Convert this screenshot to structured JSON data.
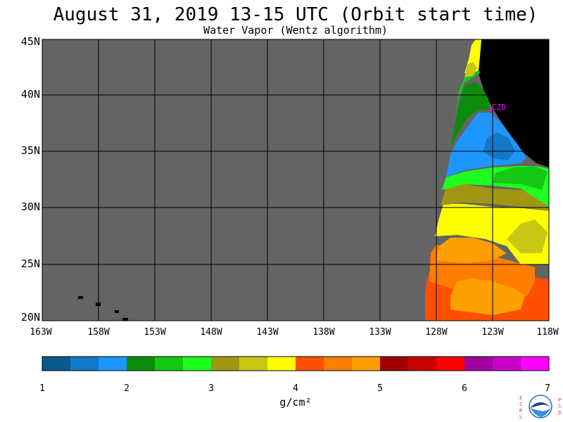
{
  "title": "August 31, 2019  13-15 UTC  (Orbit start time)",
  "subtitle": "Water Vapor (Wentz algorithm)",
  "map": {
    "lat_labels": [
      "45N",
      "40N",
      "35N",
      "30N",
      "25N",
      "20N"
    ],
    "lon_labels": [
      "163W",
      "158W",
      "153W",
      "148W",
      "143W",
      "138W",
      "133W",
      "128W",
      "123W",
      "118W"
    ],
    "station_label": "CZD",
    "colors": {
      "no_data": "#646464",
      "land": "#000000",
      "grid": "#000000",
      "station": "#ff00ff"
    }
  },
  "colorbar": {
    "tick_labels": [
      "1",
      "2",
      "3",
      "4",
      "5",
      "6",
      "7"
    ],
    "unit_label": "g/cm²",
    "colors": [
      "#0a5a8c",
      "#1478c8",
      "#1e96ff",
      "#0a8c0a",
      "#14c814",
      "#1eff1e",
      "#a09614",
      "#c8c814",
      "#ffff00",
      "#ff5000",
      "#ff7d00",
      "#ffa000",
      "#a00000",
      "#c80000",
      "#ff0000",
      "#a000a0",
      "#c800c8",
      "#ff00ff"
    ]
  },
  "logo": {
    "left_letters": "ESRL",
    "right_letters": "PSD",
    "center_text": "NOAA"
  }
}
